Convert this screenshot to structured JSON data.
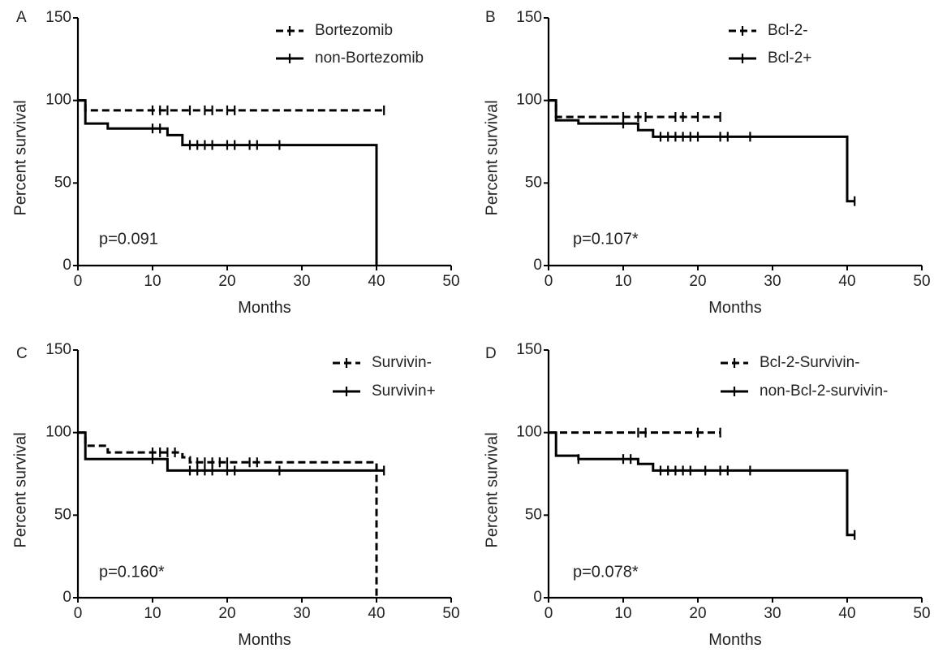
{
  "chart_data": [
    {
      "type": "line",
      "panel_label": "A",
      "xlabel": "Months",
      "ylabel": "Percent survival",
      "xlim": [
        0,
        50
      ],
      "ylim": [
        0,
        150
      ],
      "x_ticks": [
        "0",
        "10",
        "20",
        "30",
        "40",
        "50"
      ],
      "y_ticks": [
        "0",
        "50",
        "100",
        "150"
      ],
      "grid": false,
      "legend_position": "top-right",
      "annotation": "p=0.091",
      "series": [
        {
          "name": "Bortezomib",
          "style": "dashed",
          "step_x": [
            0,
            1,
            41
          ],
          "step_y": [
            100,
            94,
            94
          ],
          "censor_x": [
            10,
            11,
            12,
            15,
            17,
            18,
            20,
            21,
            41
          ],
          "censor_y": [
            94,
            94,
            94,
            94,
            94,
            94,
            94,
            94,
            94
          ]
        },
        {
          "name": "non-Bortezomib",
          "style": "solid",
          "step_x": [
            0,
            1,
            4,
            12,
            14,
            40
          ],
          "step_y": [
            100,
            86,
            83,
            79,
            73,
            0
          ],
          "censor_x": [
            10,
            11,
            15,
            16,
            17,
            18,
            20,
            21,
            23,
            24,
            27
          ],
          "censor_y": [
            83,
            83,
            73,
            73,
            73,
            73,
            73,
            73,
            73,
            73,
            73
          ]
        }
      ]
    },
    {
      "type": "line",
      "panel_label": "B",
      "xlabel": "Months",
      "ylabel": "Percent survival",
      "xlim": [
        0,
        50
      ],
      "ylim": [
        0,
        150
      ],
      "x_ticks": [
        "0",
        "10",
        "20",
        "30",
        "40",
        "50"
      ],
      "y_ticks": [
        "0",
        "50",
        "100",
        "150"
      ],
      "grid": false,
      "legend_position": "top-right",
      "annotation": "p=0.107*",
      "series": [
        {
          "name": "Bcl-2-",
          "style": "dashed",
          "step_x": [
            0,
            1,
            23
          ],
          "step_y": [
            100,
            90,
            90
          ],
          "censor_x": [
            10,
            12,
            13,
            17,
            18,
            20,
            23
          ],
          "censor_y": [
            90,
            90,
            90,
            90,
            90,
            90,
            90
          ]
        },
        {
          "name": "Bcl-2+",
          "style": "solid",
          "step_x": [
            0,
            1,
            4,
            12,
            14,
            40,
            41
          ],
          "step_y": [
            100,
            88,
            86,
            82,
            78,
            39,
            39
          ],
          "censor_x": [
            10,
            15,
            16,
            17,
            18,
            19,
            20,
            23,
            24,
            27,
            41
          ],
          "censor_y": [
            86,
            78,
            78,
            78,
            78,
            78,
            78,
            78,
            78,
            78,
            39
          ]
        }
      ]
    },
    {
      "type": "line",
      "panel_label": "C",
      "xlabel": "Months",
      "ylabel": "Percent survival",
      "xlim": [
        0,
        50
      ],
      "ylim": [
        0,
        150
      ],
      "x_ticks": [
        "0",
        "10",
        "20",
        "30",
        "40",
        "50"
      ],
      "y_ticks": [
        "0",
        "50",
        "100",
        "150"
      ],
      "grid": false,
      "legend_position": "top-right",
      "annotation": "p=0.160*",
      "series": [
        {
          "name": "Survivin-",
          "style": "dashed",
          "step_x": [
            0,
            1,
            4,
            14,
            15,
            40
          ],
          "step_y": [
            100,
            92,
            88,
            85,
            82,
            0
          ],
          "censor_x": [
            10,
            11,
            12,
            13,
            16,
            17,
            18,
            19,
            20,
            23,
            24
          ],
          "censor_y": [
            88,
            88,
            88,
            88,
            82,
            82,
            82,
            82,
            82,
            82,
            82
          ]
        },
        {
          "name": "Survivin+",
          "style": "solid",
          "step_x": [
            0,
            1,
            12,
            41
          ],
          "step_y": [
            100,
            84,
            77,
            77
          ],
          "censor_x": [
            10,
            15,
            16,
            17,
            18,
            20,
            21,
            27,
            41
          ],
          "censor_y": [
            84,
            77,
            77,
            77,
            77,
            77,
            77,
            77,
            77
          ]
        }
      ]
    },
    {
      "type": "line",
      "panel_label": "D",
      "xlabel": "Months",
      "ylabel": "Percent survival",
      "xlim": [
        0,
        50
      ],
      "ylim": [
        0,
        150
      ],
      "x_ticks": [
        "0",
        "10",
        "20",
        "30",
        "40",
        "50"
      ],
      "y_ticks": [
        "0",
        "50",
        "100",
        "150"
      ],
      "grid": false,
      "legend_position": "top-right",
      "annotation": "p=0.078*",
      "series": [
        {
          "name": "Bcl-2-Survivin-",
          "style": "dashed",
          "step_x": [
            0,
            23
          ],
          "step_y": [
            100,
            100
          ],
          "censor_x": [
            12,
            13,
            20,
            23
          ],
          "censor_y": [
            100,
            100,
            100,
            100
          ]
        },
        {
          "name": "non-Bcl-2-survivin-",
          "style": "solid",
          "step_x": [
            0,
            1,
            4,
            12,
            14,
            40,
            41
          ],
          "step_y": [
            100,
            86,
            84,
            81,
            77,
            38,
            38
          ],
          "censor_x": [
            4,
            10,
            11,
            15,
            16,
            17,
            18,
            19,
            21,
            23,
            24,
            27,
            41
          ],
          "censor_y": [
            84,
            84,
            84,
            77,
            77,
            77,
            77,
            77,
            77,
            77,
            77,
            77,
            38
          ]
        }
      ]
    }
  ]
}
